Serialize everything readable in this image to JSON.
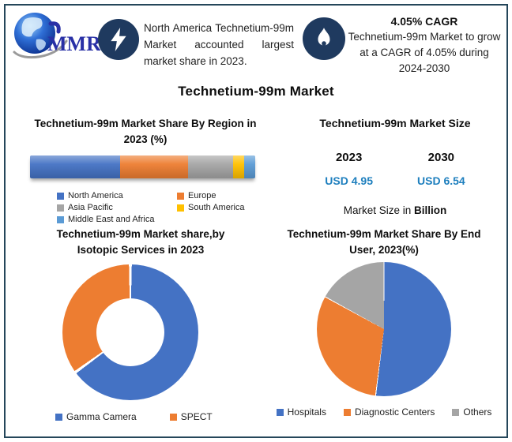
{
  "brand": {
    "name": "MMR"
  },
  "header": {
    "left_highlight": {
      "icon": "lightning-icon",
      "text": "North America Technetium-99m Market accounted largest market share in 2023."
    },
    "right_highlight": {
      "icon": "flame-icon",
      "title": "4.05% CAGR",
      "text": "Technetium-99m Market to grow at a CAGR of 4.05% during 2024-2030"
    }
  },
  "page_title": "Technetium-99m Market",
  "market_size": {
    "title": "Technetium-99m Market Size",
    "entries": [
      {
        "year": "2023",
        "value": "USD 4.95"
      },
      {
        "year": "2030",
        "value": "USD 6.54"
      }
    ],
    "note_regular": "Market Size in ",
    "note_bold": "Billion",
    "value_color": "#1e7fbe"
  },
  "colors": {
    "accent_navy": "#1f3a5f",
    "frame_border": "#24465a"
  },
  "chart_data": [
    {
      "type": "bar",
      "variant": "horizontal-stacked",
      "title": "Technetium-99m Market Share By Region in 2023 (%)",
      "labels": [
        "North America",
        "Europe",
        "Asia Pacific",
        "South America",
        "Middle East and Africa"
      ],
      "values": [
        40,
        30,
        20,
        5,
        5
      ],
      "colors": [
        "#4472c4",
        "#ed7d31",
        "#a5a5a5",
        "#ffc000",
        "#5b9bd5"
      ],
      "unit": "%",
      "axis": "none",
      "legend_position": "bottom"
    },
    {
      "type": "pie",
      "variant": "donut",
      "title": "Technetium-99m Market share,by Isotopic Services  in 2023",
      "labels": [
        "Gamma Camera",
        "SPECT"
      ],
      "values": [
        65,
        35
      ],
      "colors": [
        "#4472c4",
        "#ed7d31"
      ],
      "start_angle_deg": 0,
      "gap_deg": 1.2,
      "legend_position": "bottom"
    },
    {
      "type": "pie",
      "variant": "pie",
      "title": "Technetium-99m Market Share By End User, 2023(%)",
      "labels": [
        "Hospitals",
        "Diagnostic Centers",
        "Others"
      ],
      "values": [
        52,
        31,
        17
      ],
      "colors": [
        "#4472c4",
        "#ed7d31",
        "#a5a5a5"
      ],
      "start_angle_deg": 0,
      "gap_deg": 0.4,
      "legend_position": "bottom"
    }
  ]
}
